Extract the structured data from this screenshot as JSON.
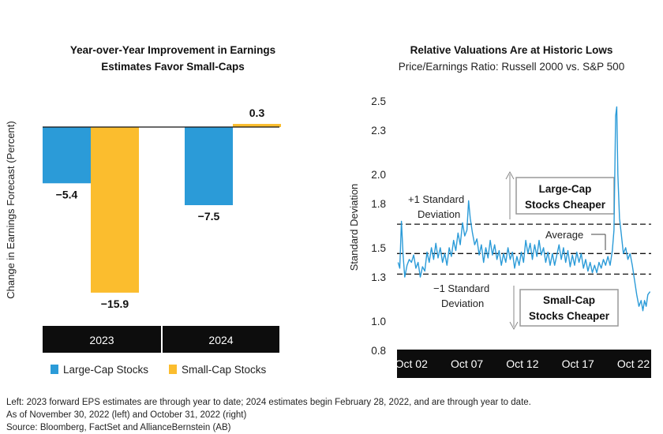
{
  "chart_data": [
    {
      "type": "bar",
      "title": "Year-over-Year Improvement in Earnings Estimates Favor Small-Caps",
      "title_lines": [
        "Year-over-Year Improvement in Earnings",
        "Estimates Favor Small-Caps"
      ],
      "ylabel": "Change in Earnings Forecast (Percent)",
      "categories": [
        "2023",
        "2024"
      ],
      "series": [
        {
          "name": "Large-Cap Stocks",
          "color": "#2b9bd8",
          "values": [
            -5.4,
            -7.5
          ]
        },
        {
          "name": "Small-Cap Stocks",
          "color": "#fbbd2e",
          "values": [
            -15.9,
            0.3
          ]
        }
      ],
      "value_labels": [
        [
          "−5.4",
          "−7.5"
        ],
        [
          "−15.9",
          "0.3"
        ]
      ],
      "ylim": [
        -16,
        0.3
      ],
      "legend_position": "bottom"
    },
    {
      "type": "line",
      "title": "Relative Valuations Are at Historic Lows",
      "subtitle": "Price/Earnings Ratio: Russell 2000 vs. S&P 500",
      "ylabel": "Standard Deviation",
      "yticks": [
        "2.5",
        "2.3",
        "2.0",
        "1.8",
        "1.5",
        "1.3",
        "1.0",
        "0.8"
      ],
      "ytick_values": [
        2.5,
        2.3,
        2.0,
        1.8,
        1.5,
        1.3,
        1.0,
        0.8
      ],
      "ylim": [
        0.8,
        2.5
      ],
      "xticks": [
        "Oct 02",
        "Oct 07",
        "Oct 12",
        "Oct 17",
        "Oct 22"
      ],
      "xtick_years": [
        2002,
        2007,
        2012,
        2017,
        2022
      ],
      "xlim": [
        2000.7,
        2023.6
      ],
      "line_color": "#2b9bd8",
      "reference_lines": [
        {
          "name": "+1 Standard Deviation",
          "value": 1.66
        },
        {
          "name": "Average",
          "value": 1.46
        },
        {
          "name": "−1 Standard Deviation",
          "value": 1.32
        }
      ],
      "annotations": {
        "plus_sd": [
          "+1 Standard",
          "Deviation"
        ],
        "minus_sd": [
          "−1 Standard",
          "Deviation"
        ],
        "average": "Average",
        "large_cap_box": [
          "Large-Cap",
          "Stocks Cheaper"
        ],
        "small_cap_box": [
          "Small-Cap",
          "Stocks Cheaper"
        ]
      },
      "series": [
        {
          "color": "#2b9bd8",
          "points": [
            [
              2000.8,
              1.4
            ],
            [
              2000.95,
              1.36
            ],
            [
              2001.1,
              1.68
            ],
            [
              2001.25,
              1.45
            ],
            [
              2001.4,
              1.3
            ],
            [
              2001.6,
              1.38
            ],
            [
              2001.8,
              1.42
            ],
            [
              2002.0,
              1.4
            ],
            [
              2002.2,
              1.45
            ],
            [
              2002.4,
              1.36
            ],
            [
              2002.6,
              1.4
            ],
            [
              2002.8,
              1.3
            ],
            [
              2003.0,
              1.37
            ],
            [
              2003.2,
              1.34
            ],
            [
              2003.4,
              1.47
            ],
            [
              2003.6,
              1.4
            ],
            [
              2003.8,
              1.5
            ],
            [
              2004.0,
              1.42
            ],
            [
              2004.2,
              1.53
            ],
            [
              2004.4,
              1.43
            ],
            [
              2004.6,
              1.5
            ],
            [
              2004.8,
              1.4
            ],
            [
              2005.0,
              1.46
            ],
            [
              2005.2,
              1.38
            ],
            [
              2005.4,
              1.5
            ],
            [
              2005.6,
              1.44
            ],
            [
              2005.8,
              1.55
            ],
            [
              2006.0,
              1.48
            ],
            [
              2006.2,
              1.6
            ],
            [
              2006.4,
              1.52
            ],
            [
              2006.6,
              1.67
            ],
            [
              2006.8,
              1.58
            ],
            [
              2007.0,
              1.62
            ],
            [
              2007.15,
              1.82
            ],
            [
              2007.3,
              1.7
            ],
            [
              2007.5,
              1.6
            ],
            [
              2007.7,
              1.52
            ],
            [
              2007.9,
              1.56
            ],
            [
              2008.1,
              1.45
            ],
            [
              2008.3,
              1.52
            ],
            [
              2008.5,
              1.4
            ],
            [
              2008.7,
              1.5
            ],
            [
              2008.9,
              1.43
            ],
            [
              2009.1,
              1.55
            ],
            [
              2009.3,
              1.45
            ],
            [
              2009.5,
              1.52
            ],
            [
              2009.7,
              1.42
            ],
            [
              2009.9,
              1.48
            ],
            [
              2010.1,
              1.38
            ],
            [
              2010.3,
              1.46
            ],
            [
              2010.5,
              1.4
            ],
            [
              2010.7,
              1.5
            ],
            [
              2010.9,
              1.42
            ],
            [
              2011.1,
              1.47
            ],
            [
              2011.3,
              1.36
            ],
            [
              2011.5,
              1.44
            ],
            [
              2011.7,
              1.38
            ],
            [
              2011.9,
              1.47
            ],
            [
              2012.1,
              1.4
            ],
            [
              2012.3,
              1.55
            ],
            [
              2012.5,
              1.46
            ],
            [
              2012.7,
              1.53
            ],
            [
              2012.9,
              1.42
            ],
            [
              2013.1,
              1.52
            ],
            [
              2013.3,
              1.44
            ],
            [
              2013.5,
              1.55
            ],
            [
              2013.7,
              1.45
            ],
            [
              2013.9,
              1.5
            ],
            [
              2014.1,
              1.4
            ],
            [
              2014.3,
              1.47
            ],
            [
              2014.5,
              1.38
            ],
            [
              2014.7,
              1.46
            ],
            [
              2014.9,
              1.38
            ],
            [
              2015.1,
              1.45
            ],
            [
              2015.3,
              1.52
            ],
            [
              2015.5,
              1.42
            ],
            [
              2015.7,
              1.5
            ],
            [
              2015.9,
              1.4
            ],
            [
              2016.1,
              1.48
            ],
            [
              2016.3,
              1.37
            ],
            [
              2016.5,
              1.45
            ],
            [
              2016.7,
              1.38
            ],
            [
              2016.9,
              1.47
            ],
            [
              2017.1,
              1.4
            ],
            [
              2017.3,
              1.46
            ],
            [
              2017.5,
              1.36
            ],
            [
              2017.7,
              1.42
            ],
            [
              2017.9,
              1.34
            ],
            [
              2018.1,
              1.4
            ],
            [
              2018.3,
              1.33
            ],
            [
              2018.5,
              1.38
            ],
            [
              2018.7,
              1.33
            ],
            [
              2018.9,
              1.4
            ],
            [
              2019.1,
              1.36
            ],
            [
              2019.3,
              1.42
            ],
            [
              2019.5,
              1.38
            ],
            [
              2019.7,
              1.44
            ],
            [
              2019.9,
              1.38
            ],
            [
              2020.1,
              1.48
            ],
            [
              2020.25,
              1.62
            ],
            [
              2020.4,
              2.4
            ],
            [
              2020.5,
              2.46
            ],
            [
              2020.6,
              2.0
            ],
            [
              2020.75,
              1.7
            ],
            [
              2020.9,
              1.6
            ],
            [
              2021.1,
              1.46
            ],
            [
              2021.3,
              1.5
            ],
            [
              2021.5,
              1.42
            ],
            [
              2021.7,
              1.46
            ],
            [
              2021.9,
              1.38
            ],
            [
              2022.1,
              1.28
            ],
            [
              2022.3,
              1.18
            ],
            [
              2022.5,
              1.1
            ],
            [
              2022.7,
              1.14
            ],
            [
              2022.85,
              1.07
            ],
            [
              2023.0,
              1.14
            ],
            [
              2023.15,
              1.1
            ],
            [
              2023.3,
              1.18
            ],
            [
              2023.5,
              1.2
            ]
          ]
        }
      ]
    }
  ],
  "footnotes": [
    "Left: 2023 forward EPS estimates are through year to date; 2024 estimates begin February 28, 2022, and are through year to date.",
    "As of November 30, 2022 (left) and October 31, 2022 (right)",
    "Source: Bloomberg, FactSet and AllianceBernstein (AB)"
  ]
}
